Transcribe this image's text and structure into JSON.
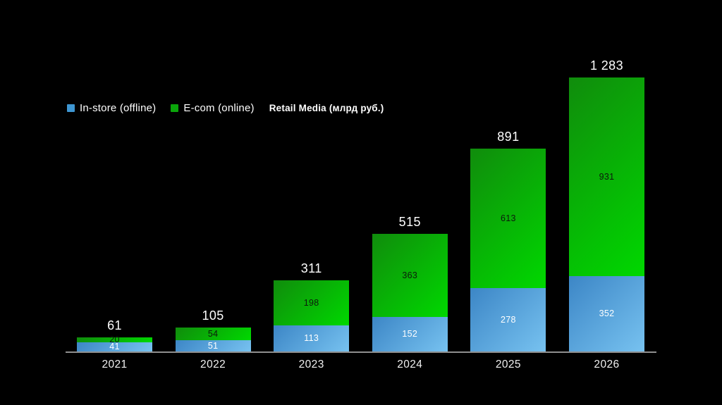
{
  "background": "#000000",
  "legend": {
    "items": [
      {
        "label": "In-store (offline)",
        "swatch": "#3e96d2"
      },
      {
        "label": "E-com (online)",
        "swatch": "#0aa50a"
      }
    ],
    "title": "Retail Media (млрд руб.)"
  },
  "chart_data": {
    "type": "bar",
    "stacked": true,
    "title": "Retail Media (млрд руб.)",
    "categories": [
      "2021",
      "2022",
      "2023",
      "2024",
      "2025",
      "2026"
    ],
    "series": [
      {
        "name": "In-store (offline)",
        "values": [
          41,
          51,
          113,
          152,
          278,
          352
        ],
        "color_start": "#3c86c6",
        "color_end": "#77c2f0",
        "label_color": "#ffffff"
      },
      {
        "name": "E-com (online)",
        "values": [
          20,
          54,
          198,
          363,
          613,
          931
        ],
        "color_start": "#108c0c",
        "color_end": "#00d800",
        "label_color": "#0c1a0c"
      }
    ],
    "totals": [
      61,
      105,
      311,
      515,
      891,
      1283
    ],
    "totals_display": [
      "61",
      "105",
      "311",
      "515",
      "891",
      "1 283"
    ],
    "xlabel": "",
    "ylabel": "",
    "ylim": [
      0,
      1283
    ],
    "grid": false,
    "legend_position": "top-left",
    "axis_color": "#8f8f8f",
    "background": "#000000"
  }
}
